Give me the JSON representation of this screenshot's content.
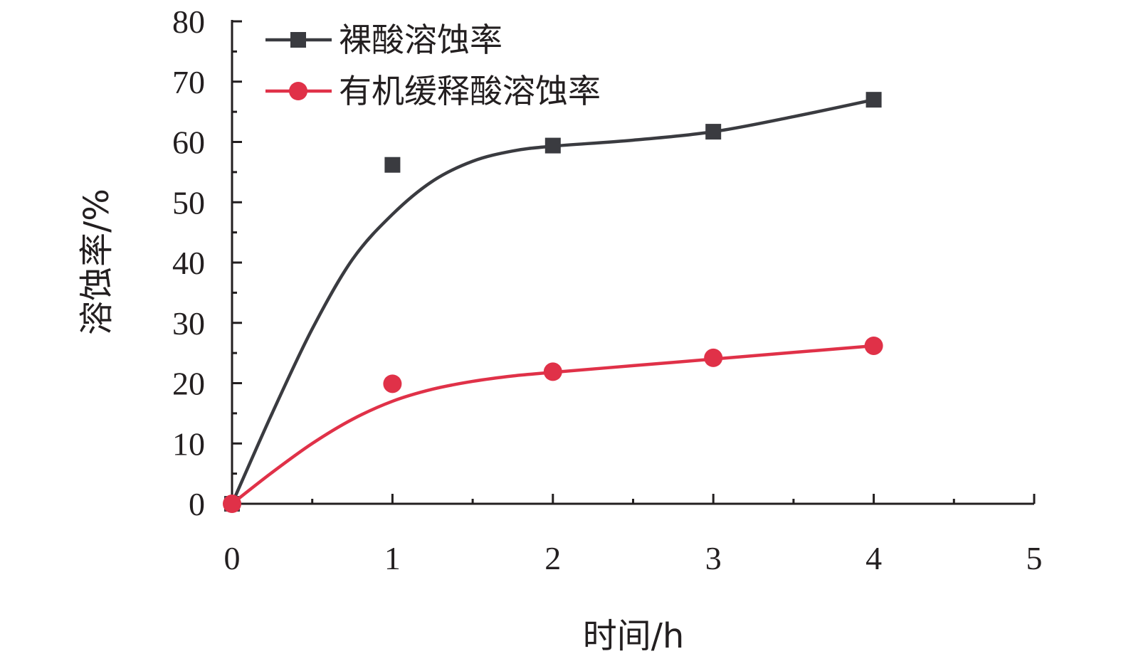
{
  "chart_data": {
    "type": "scatter",
    "xlabel": "时间/h",
    "ylabel": "溶蚀率/%",
    "xlim": [
      0,
      5
    ],
    "ylim": [
      0,
      80
    ],
    "x_ticks": [
      "0",
      "1",
      "2",
      "3",
      "4",
      "5"
    ],
    "y_ticks": [
      "0",
      "10",
      "20",
      "30",
      "40",
      "50",
      "60",
      "70",
      "80"
    ],
    "grid": false,
    "legend_position": "top-left",
    "series": [
      {
        "name": "裸酸溶蚀率",
        "marker": "square",
        "color": "#3a3b40",
        "points": [
          [
            0,
            0
          ],
          [
            1,
            56.2
          ],
          [
            2,
            59.4
          ],
          [
            3,
            61.7
          ],
          [
            4,
            67.0
          ]
        ],
        "fit": [
          [
            0,
            0
          ],
          [
            0.25,
            15
          ],
          [
            0.5,
            29
          ],
          [
            0.75,
            40.5
          ],
          [
            1,
            48
          ],
          [
            1.25,
            53.5
          ],
          [
            1.5,
            56.8
          ],
          [
            1.75,
            58.5
          ],
          [
            2,
            59.3
          ],
          [
            2.5,
            60.3
          ],
          [
            3,
            61.7
          ],
          [
            3.5,
            64.2
          ],
          [
            4,
            67.0
          ]
        ]
      },
      {
        "name": "有机缓释酸溶蚀率",
        "marker": "circle",
        "color": "#e03148",
        "points": [
          [
            0,
            0
          ],
          [
            1,
            19.9
          ],
          [
            2,
            21.9
          ],
          [
            3,
            24.2
          ],
          [
            4,
            26.2
          ]
        ],
        "fit": [
          [
            0,
            0
          ],
          [
            0.25,
            5.2
          ],
          [
            0.5,
            10
          ],
          [
            0.75,
            14
          ],
          [
            1,
            17
          ],
          [
            1.25,
            19
          ],
          [
            1.5,
            20.3
          ],
          [
            1.75,
            21.2
          ],
          [
            2,
            21.8
          ],
          [
            2.5,
            22.9
          ],
          [
            3,
            24
          ],
          [
            3.5,
            25.1
          ],
          [
            4,
            26.2
          ]
        ]
      }
    ]
  }
}
